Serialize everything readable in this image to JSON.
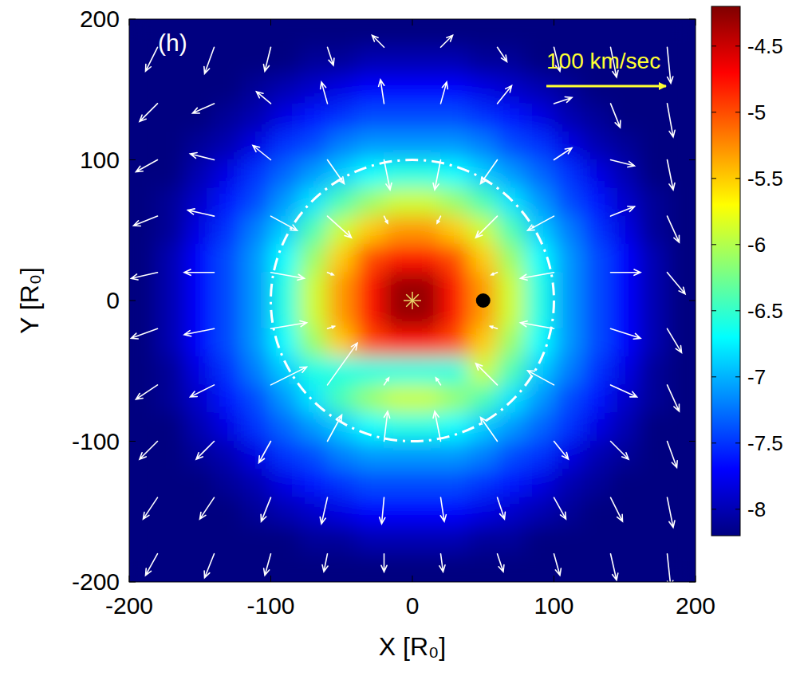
{
  "chart_data": {
    "type": "heatmap",
    "title": "(h)",
    "x_label": "X [R₀]",
    "y_label": "Y [R₀]",
    "xlim": [
      -200,
      200
    ],
    "ylim": [
      -200,
      200
    ],
    "xticks": [
      -200,
      -100,
      0,
      100,
      200
    ],
    "yticks": [
      -200,
      -100,
      0,
      100,
      200
    ],
    "density": {
      "x": [
        -190,
        -170,
        -150,
        -130,
        -110,
        -90,
        -70,
        -50,
        -30,
        -10,
        10,
        30,
        50,
        70,
        90,
        110,
        130,
        150,
        170,
        190
      ],
      "y": [
        190,
        170,
        150,
        130,
        110,
        90,
        70,
        50,
        30,
        10,
        -10,
        -30,
        -50,
        -70,
        -90,
        -110,
        -130,
        -150,
        -170,
        -190
      ],
      "cells": [
        [
          -8.2,
          -8.2,
          -8.2,
          -8.2,
          -8.2,
          -8.2,
          -8.2,
          -8.2,
          -8.2,
          -8.2,
          -8.2,
          -8.2,
          -8.2,
          -8.2,
          -8.2,
          -8.2,
          -8.2,
          -8.2,
          -8.2,
          -8.2
        ],
        [
          -8.2,
          -8.2,
          -8.2,
          -8.2,
          -8.2,
          -8.2,
          -8.1,
          -8.1,
          -8.0,
          -8.0,
          -8.0,
          -8.0,
          -8.1,
          -8.1,
          -8.2,
          -8.2,
          -8.2,
          -8.2,
          -8.2,
          -8.2
        ],
        [
          -8.2,
          -8.2,
          -8.2,
          -8.2,
          -8.1,
          -8.0,
          -7.9,
          -7.8,
          -7.7,
          -7.7,
          -7.7,
          -7.7,
          -7.8,
          -7.9,
          -8.0,
          -8.1,
          -8.2,
          -8.2,
          -8.2,
          -8.2
        ],
        [
          -8.2,
          -8.2,
          -8.2,
          -8.1,
          -8.0,
          -7.8,
          -7.6,
          -7.5,
          -7.4,
          -7.4,
          -7.4,
          -7.4,
          -7.5,
          -7.6,
          -7.8,
          -8.0,
          -8.1,
          -8.2,
          -8.2,
          -8.2
        ],
        [
          -8.2,
          -8.2,
          -8.1,
          -8.0,
          -7.8,
          -7.5,
          -7.4,
          -7.2,
          -7.1,
          -7.1,
          -7.1,
          -7.1,
          -7.2,
          -7.4,
          -7.5,
          -7.8,
          -8.0,
          -8.1,
          -8.2,
          -8.2
        ],
        [
          -8.2,
          -8.2,
          -8.0,
          -7.8,
          -7.5,
          -7.3,
          -7.1,
          -6.9,
          -6.7,
          -6.6,
          -6.6,
          -6.7,
          -6.9,
          -7.1,
          -7.3,
          -7.5,
          -7.8,
          -8.0,
          -8.2,
          -8.2
        ],
        [
          -8.2,
          -8.1,
          -7.9,
          -7.6,
          -7.4,
          -7.1,
          -6.8,
          -6.4,
          -6.1,
          -5.9,
          -5.9,
          -6.1,
          -6.4,
          -6.8,
          -7.1,
          -7.4,
          -7.6,
          -7.9,
          -8.1,
          -8.2
        ],
        [
          -8.2,
          -8.1,
          -7.8,
          -7.5,
          -7.2,
          -6.9,
          -6.4,
          -5.9,
          -5.5,
          -5.3,
          -5.3,
          -5.5,
          -5.9,
          -6.4,
          -6.9,
          -7.2,
          -7.5,
          -7.8,
          -8.1,
          -8.2
        ],
        [
          -8.2,
          -8.0,
          -7.7,
          -7.4,
          -7.1,
          -6.7,
          -6.1,
          -5.5,
          -5.0,
          -4.8,
          -4.8,
          -5.0,
          -5.5,
          -6.1,
          -6.7,
          -7.1,
          -7.4,
          -7.7,
          -8.0,
          -8.2
        ],
        [
          -8.2,
          -8.0,
          -7.7,
          -7.4,
          -7.1,
          -6.6,
          -5.9,
          -5.3,
          -4.8,
          -4.3,
          -4.3,
          -4.8,
          -5.3,
          -5.9,
          -6.6,
          -7.1,
          -7.4,
          -7.7,
          -8.0,
          -8.2
        ],
        [
          -8.2,
          -8.0,
          -7.7,
          -7.4,
          -7.1,
          -6.6,
          -5.9,
          -5.3,
          -4.8,
          -4.3,
          -4.3,
          -4.8,
          -5.3,
          -5.9,
          -6.6,
          -7.1,
          -7.4,
          -7.7,
          -8.0,
          -8.2
        ],
        [
          -8.2,
          -8.0,
          -7.7,
          -7.4,
          -7.1,
          -6.7,
          -6.1,
          -5.5,
          -5.0,
          -4.8,
          -4.8,
          -5.0,
          -5.5,
          -6.1,
          -6.7,
          -7.1,
          -7.4,
          -7.7,
          -8.0,
          -8.2
        ],
        [
          -8.2,
          -8.1,
          -7.8,
          -7.5,
          -7.2,
          -6.9,
          -6.6,
          -6.6,
          -6.6,
          -6.6,
          -6.6,
          -6.6,
          -5.9,
          -6.4,
          -6.9,
          -7.2,
          -7.5,
          -7.8,
          -8.1,
          -8.2
        ],
        [
          -8.2,
          -8.1,
          -7.9,
          -7.6,
          -7.4,
          -7.1,
          -6.8,
          -6.4,
          -6.1,
          -5.9,
          -5.9,
          -6.1,
          -6.4,
          -6.8,
          -7.1,
          -7.4,
          -7.6,
          -7.9,
          -8.1,
          -8.2
        ],
        [
          -8.2,
          -8.2,
          -8.0,
          -7.8,
          -7.5,
          -7.3,
          -7.1,
          -6.9,
          -6.7,
          -6.6,
          -6.6,
          -6.7,
          -6.9,
          -7.1,
          -7.3,
          -7.5,
          -7.8,
          -8.0,
          -8.2,
          -8.2
        ],
        [
          -8.2,
          -8.2,
          -8.1,
          -8.0,
          -7.8,
          -7.5,
          -7.4,
          -7.2,
          -7.1,
          -7.1,
          -7.1,
          -7.1,
          -7.2,
          -7.4,
          -7.5,
          -7.8,
          -8.0,
          -8.1,
          -8.2,
          -8.2
        ],
        [
          -8.2,
          -8.2,
          -8.2,
          -8.1,
          -8.0,
          -7.8,
          -7.6,
          -7.5,
          -7.4,
          -7.4,
          -7.4,
          -7.4,
          -7.5,
          -7.6,
          -7.8,
          -8.0,
          -8.1,
          -8.2,
          -8.2,
          -8.2
        ],
        [
          -8.2,
          -8.2,
          -8.2,
          -8.2,
          -8.1,
          -8.0,
          -7.9,
          -7.8,
          -7.7,
          -7.7,
          -7.7,
          -7.7,
          -7.8,
          -7.9,
          -8.0,
          -8.1,
          -8.2,
          -8.2,
          -8.2,
          -8.2
        ],
        [
          -8.2,
          -8.2,
          -8.2,
          -8.2,
          -8.2,
          -8.2,
          -8.1,
          -8.1,
          -8.0,
          -8.0,
          -8.0,
          -8.0,
          -8.1,
          -8.1,
          -8.2,
          -8.2,
          -8.2,
          -8.2,
          -8.2,
          -8.2
        ],
        [
          -8.2,
          -8.2,
          -8.2,
          -8.2,
          -8.2,
          -8.2,
          -8.2,
          -8.2,
          -8.2,
          -8.2,
          -8.2,
          -8.2,
          -8.2,
          -8.2,
          -8.2,
          -8.2,
          -8.2,
          -8.2,
          -8.2,
          -8.2
        ]
      ],
      "colorbar": {
        "range": [
          -8.2,
          -4.2
        ],
        "ticks": [
          -8,
          -7.5,
          -7,
          -6.5,
          -6,
          -5.5,
          -5,
          -4.5
        ]
      }
    },
    "vectors": [
      [
        -180,
        180,
        -10,
        -20
      ],
      [
        -140,
        180,
        -8,
        -22
      ],
      [
        -100,
        180,
        -5,
        -20
      ],
      [
        -60,
        180,
        5,
        -15
      ],
      [
        -20,
        180,
        -10,
        10
      ],
      [
        20,
        180,
        10,
        10
      ],
      [
        60,
        180,
        8,
        -12
      ],
      [
        100,
        180,
        5,
        -20
      ],
      [
        140,
        180,
        5,
        -25
      ],
      [
        180,
        180,
        3,
        -30
      ],
      [
        -180,
        140,
        -15,
        -15
      ],
      [
        -140,
        140,
        -18,
        -8
      ],
      [
        -100,
        140,
        -12,
        10
      ],
      [
        -60,
        140,
        -5,
        18
      ],
      [
        -20,
        140,
        -3,
        20
      ],
      [
        20,
        140,
        5,
        18
      ],
      [
        60,
        140,
        12,
        15
      ],
      [
        100,
        140,
        15,
        5
      ],
      [
        140,
        140,
        8,
        -20
      ],
      [
        180,
        140,
        5,
        -28
      ],
      [
        -180,
        100,
        -18,
        -10
      ],
      [
        -140,
        100,
        -20,
        5
      ],
      [
        -100,
        100,
        -15,
        12
      ],
      [
        -60,
        100,
        14,
        -20
      ],
      [
        -20,
        100,
        5,
        -25
      ],
      [
        20,
        100,
        -5,
        -25
      ],
      [
        60,
        100,
        -14,
        -20
      ],
      [
        100,
        100,
        15,
        10
      ],
      [
        140,
        100,
        20,
        -5
      ],
      [
        180,
        100,
        5,
        -25
      ],
      [
        -180,
        60,
        -20,
        -8
      ],
      [
        -140,
        60,
        -22,
        5
      ],
      [
        -100,
        60,
        22,
        -12
      ],
      [
        -60,
        60,
        20,
        -18
      ],
      [
        -20,
        60,
        3,
        -6
      ],
      [
        20,
        60,
        -3,
        -6
      ],
      [
        60,
        60,
        -18,
        -18
      ],
      [
        100,
        60,
        -22,
        -12
      ],
      [
        140,
        60,
        20,
        8
      ],
      [
        180,
        60,
        10,
        -22
      ],
      [
        -180,
        20,
        -22,
        -5
      ],
      [
        -140,
        20,
        -25,
        0
      ],
      [
        -100,
        20,
        28,
        -5
      ],
      [
        -60,
        20,
        5,
        -2
      ],
      [
        60,
        20,
        -5,
        -2
      ],
      [
        100,
        20,
        -28,
        -5
      ],
      [
        140,
        20,
        25,
        0
      ],
      [
        180,
        20,
        15,
        -18
      ],
      [
        -180,
        -20,
        -22,
        -8
      ],
      [
        -140,
        -20,
        -25,
        -5
      ],
      [
        -100,
        -20,
        30,
        5
      ],
      [
        -60,
        -20,
        6,
        2
      ],
      [
        60,
        -20,
        -6,
        2
      ],
      [
        100,
        -20,
        -28,
        5
      ],
      [
        140,
        -20,
        25,
        -8
      ],
      [
        180,
        -20,
        12,
        -20
      ],
      [
        -180,
        -60,
        -18,
        -12
      ],
      [
        -140,
        -60,
        -20,
        -10
      ],
      [
        -100,
        -60,
        30,
        15
      ],
      [
        -60,
        -60,
        25,
        35
      ],
      [
        -20,
        -60,
        4,
        6
      ],
      [
        20,
        -60,
        -4,
        6
      ],
      [
        60,
        -60,
        -18,
        18
      ],
      [
        100,
        -60,
        -22,
        12
      ],
      [
        140,
        -60,
        22,
        -10
      ],
      [
        180,
        -60,
        10,
        -22
      ],
      [
        -180,
        -100,
        -15,
        -15
      ],
      [
        -140,
        -100,
        -15,
        -15
      ],
      [
        -100,
        -100,
        -10,
        -18
      ],
      [
        -60,
        -100,
        12,
        22
      ],
      [
        -20,
        -100,
        3,
        25
      ],
      [
        20,
        -100,
        -5,
        25
      ],
      [
        60,
        -100,
        -14,
        20
      ],
      [
        100,
        -100,
        12,
        -15
      ],
      [
        140,
        -100,
        15,
        -15
      ],
      [
        180,
        -100,
        8,
        -22
      ],
      [
        -180,
        -140,
        -12,
        -18
      ],
      [
        -140,
        -140,
        -12,
        -18
      ],
      [
        -100,
        -140,
        -8,
        -20
      ],
      [
        -60,
        -140,
        -5,
        -22
      ],
      [
        -20,
        -140,
        -2,
        -22
      ],
      [
        20,
        -140,
        3,
        -20
      ],
      [
        60,
        -140,
        6,
        -18
      ],
      [
        100,
        -140,
        10,
        -18
      ],
      [
        140,
        -140,
        10,
        -20
      ],
      [
        180,
        -140,
        5,
        -25
      ],
      [
        -180,
        -180,
        -10,
        -18
      ],
      [
        -140,
        -180,
        -8,
        -20
      ],
      [
        -100,
        -180,
        -5,
        -18
      ],
      [
        -60,
        -180,
        -3,
        -15
      ],
      [
        -20,
        -180,
        0,
        -15
      ],
      [
        20,
        -180,
        2,
        -15
      ],
      [
        60,
        -180,
        5,
        -15
      ],
      [
        100,
        -180,
        5,
        -18
      ],
      [
        140,
        -180,
        5,
        -22
      ],
      [
        180,
        -180,
        3,
        -28
      ]
    ],
    "reference_vector": {
      "value": 100,
      "label": "100 km/sec"
    },
    "circle_radius": 100,
    "star": {
      "x": 0,
      "y": 0
    },
    "companion": {
      "x": 50,
      "y": 0
    }
  }
}
